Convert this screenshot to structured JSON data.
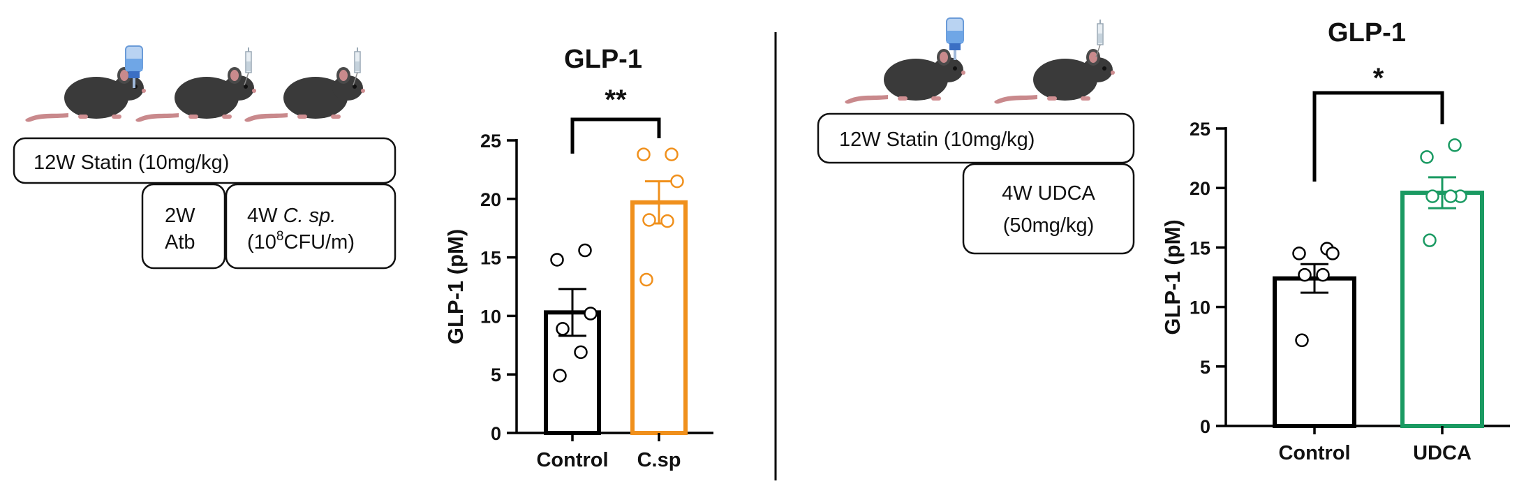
{
  "left_panel": {
    "boxes": {
      "statin": "12W Statin  (10mg/kg)",
      "atb_line1": "2W",
      "atb_line2": "Atb",
      "csp_line1_prefix": "4W ",
      "csp_line1_italic": "C. sp.",
      "csp_line2_prefix": "(10",
      "csp_line2_sup": "8",
      "csp_line2_suffix": "CFU/m)"
    },
    "illustration_icons": [
      "mouse-icon",
      "water-bottle-icon",
      "mouse-icon",
      "syringe-icon",
      "mouse-icon",
      "syringe-icon"
    ]
  },
  "right_panel": {
    "boxes": {
      "statin": "12W Statin  (10mg/kg)",
      "udca_line1": "4W UDCA",
      "udca_line2": "(50mg/kg)"
    },
    "illustration_icons": [
      "mouse-icon",
      "water-bottle-icon",
      "mouse-icon",
      "syringe-icon"
    ]
  },
  "colors": {
    "control": "#000000",
    "csp": "#f0901c",
    "udca": "#1a9a62",
    "divider": "#000000"
  },
  "chart_data": [
    {
      "type": "bar",
      "title": "GLP-1",
      "ylabel": "GLP-1 (pM)",
      "xlabel": "",
      "categories": [
        "Control",
        "C.sp"
      ],
      "values": [
        10.3,
        19.7
      ],
      "sem": [
        2.0,
        1.8
      ],
      "points": [
        [
          15.6,
          14.8,
          10.2,
          8.9,
          6.9,
          4.9
        ],
        [
          23.8,
          23.8,
          21.5,
          18.2,
          18.1,
          13.1
        ]
      ],
      "bar_colors": [
        "#000000",
        "#f0901c"
      ],
      "ylim": [
        0,
        25
      ],
      "yticks": [
        0,
        5,
        10,
        15,
        20,
        25
      ],
      "significance": "**",
      "grid": false
    },
    {
      "type": "bar",
      "title": "GLP-1",
      "ylabel": "GLP-1 (pM)",
      "xlabel": "",
      "categories": [
        "Control",
        "UDCA"
      ],
      "values": [
        12.4,
        19.6
      ],
      "sem": [
        1.2,
        1.3
      ],
      "points": [
        [
          14.9,
          14.5,
          14.5,
          12.7,
          12.7,
          7.2
        ],
        [
          23.6,
          22.6,
          19.3,
          19.3,
          19.3,
          15.6
        ]
      ],
      "bar_colors": [
        "#000000",
        "#1a9a62"
      ],
      "ylim": [
        0,
        25
      ],
      "yticks": [
        0,
        5,
        10,
        15,
        20,
        25
      ],
      "significance": "*",
      "grid": false
    }
  ]
}
